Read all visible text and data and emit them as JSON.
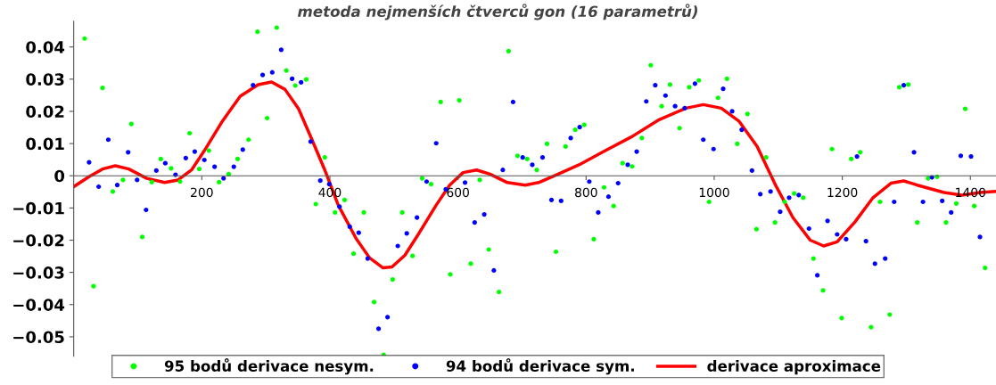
{
  "chart_data": {
    "type": "scatter",
    "title": "metoda nejmenších čtverců gon (16 parametrů)",
    "xlim": [
      0,
      1440
    ],
    "ylim": [
      -0.056,
      0.048
    ],
    "xticks": [
      200,
      400,
      600,
      800,
      1000,
      1200,
      1400
    ],
    "yticks": [
      {
        "value": -0.05,
        "label": "−0.05"
      },
      {
        "value": -0.04,
        "label": "−0.04"
      },
      {
        "value": -0.03,
        "label": "−0.03"
      },
      {
        "value": -0.02,
        "label": "−0.02"
      },
      {
        "value": -0.01,
        "label": "−0.01"
      },
      0,
      0.01,
      0.02,
      0.03,
      0.04
    ],
    "grid": false,
    "legend": "bottom",
    "marker": "circle",
    "series": [
      {
        "name": "95 bodů derivace nesym.",
        "color": "#00ff00",
        "x": [
          17,
          31,
          45,
          61,
          77,
          90,
          107,
          122,
          136,
          152,
          166,
          181,
          196,
          211,
          227,
          242,
          256,
          273,
          287,
          302,
          317,
          332,
          346,
          363,
          378,
          392,
          408,
          423,
          437,
          453,
          469,
          484,
          498,
          513,
          529,
          544,
          558,
          573,
          588,
          602,
          620,
          634,
          648,
          664,
          679,
          693,
          708,
          723,
          739,
          753,
          768,
          783,
          797,
          812,
          828,
          843,
          857,
          872,
          887,
          901,
          918,
          931,
          946,
          961,
          976,
          992,
          1006,
          1020,
          1036,
          1052,
          1066,
          1081,
          1095,
          1110,
          1125,
          1139,
          1155,
          1170,
          1184,
          1199,
          1214,
          1228,
          1245,
          1259,
          1274,
          1289,
          1303,
          1317,
          1334,
          1348,
          1362,
          1378,
          1392,
          1406,
          1423
        ],
        "values": [
          0.0426,
          -0.0343,
          0.0273,
          -0.0049,
          -0.0013,
          0.0161,
          -0.019,
          -0.002,
          0.0052,
          0.0023,
          -0.0018,
          0.0132,
          0.0021,
          0.0078,
          -0.002,
          0.0005,
          0.0052,
          0.0112,
          0.0447,
          0.0179,
          0.046,
          0.0327,
          0.028,
          0.0299,
          -0.0088,
          0.0057,
          -0.0114,
          -0.0075,
          -0.0242,
          -0.0114,
          -0.0392,
          -0.0556,
          -0.0322,
          -0.0114,
          -0.0249,
          -0.0008,
          -0.0026,
          0.0229,
          -0.0306,
          0.0234,
          -0.0273,
          -0.0013,
          -0.0229,
          -0.0361,
          0.0387,
          0.0062,
          0.0052,
          0.0018,
          0.0099,
          -0.0236,
          0.0091,
          0.0143,
          0.0158,
          -0.0197,
          -0.0036,
          -0.0094,
          0.0039,
          0.0029,
          0.0117,
          0.0343,
          0.0216,
          0.0283,
          0.0148,
          0.0275,
          0.0296,
          -0.0081,
          0.0242,
          0.0301,
          0.0099,
          0.0192,
          -0.0166,
          0.0057,
          -0.0145,
          -0.0081,
          -0.0055,
          -0.0068,
          -0.0257,
          -0.0356,
          0.0083,
          -0.0442,
          0.0052,
          0.0073,
          -0.047,
          -0.0081,
          -0.0431,
          0.0275,
          0.0283,
          -0.0145,
          -0.0008,
          -0.0003,
          -0.0145,
          -0.0086,
          0.0208,
          -0.0094,
          -0.0286
        ]
      },
      {
        "name": "94 bodů derivace sym.",
        "color": "#0000ff",
        "x": [
          24,
          39,
          54,
          68,
          85,
          99,
          113,
          129,
          143,
          159,
          175,
          189,
          204,
          220,
          234,
          250,
          264,
          280,
          295,
          310,
          324,
          341,
          355,
          370,
          385,
          399,
          415,
          431,
          445,
          459,
          476,
          490,
          506,
          520,
          536,
          551,
          566,
          581,
          611,
          626,
          641,
          656,
          670,
          686,
          701,
          716,
          732,
          746,
          761,
          776,
          790,
          805,
          819,
          835,
          850,
          865,
          879,
          894,
          908,
          924,
          939,
          954,
          970,
          983,
          999,
          1014,
          1028,
          1043,
          1059,
          1072,
          1088,
          1103,
          1117,
          1132,
          1148,
          1161,
          1177,
          1192,
          1206,
          1223,
          1237,
          1251,
          1267,
          1281,
          1296,
          1312,
          1326,
          1340,
          1356,
          1370,
          1385,
          1401,
          1415
        ],
        "values": [
          0.0042,
          -0.0034,
          0.0112,
          -0.0029,
          0.0073,
          -0.0013,
          -0.0106,
          0.0016,
          0.0039,
          0.0003,
          0.0055,
          0.0075,
          0.0049,
          0.0028,
          -0.0008,
          0.0028,
          0.0081,
          0.0281,
          0.0313,
          0.0321,
          0.0391,
          0.0301,
          0.029,
          0.0106,
          -0.0015,
          -0.0026,
          -0.0096,
          -0.0158,
          -0.0177,
          -0.0257,
          -0.0475,
          -0.0439,
          -0.0218,
          -0.0179,
          -0.013,
          -0.0018,
          0.0101,
          -0.0042,
          -0.0021,
          -0.0145,
          -0.012,
          -0.0294,
          0.0018,
          0.0229,
          0.0057,
          0.0034,
          0.0057,
          -0.0075,
          -0.0078,
          0.0117,
          0.0151,
          -0.0018,
          -0.0114,
          -0.0065,
          -0.0023,
          0.0034,
          0.0075,
          0.0231,
          0.0281,
          0.0249,
          0.0216,
          0.021,
          0.0286,
          0.0112,
          0.0083,
          0.027,
          0.02,
          0.0143,
          0.0016,
          -0.0057,
          -0.0049,
          -0.0112,
          -0.0068,
          -0.006,
          -0.0164,
          -0.0309,
          -0.014,
          -0.0182,
          -0.0197,
          0.006,
          -0.0203,
          -0.0273,
          -0.0257,
          -0.0081,
          0.0281,
          0.0073,
          -0.0081,
          -0.0005,
          -0.0078,
          -0.0114,
          0.0062,
          0.006,
          -0.019
        ]
      },
      {
        "name": "derivace aproximace",
        "type": "line",
        "color": "#ff0000",
        "marker": "none",
        "line_style": "solid",
        "x": [
          0,
          24,
          45,
          65,
          86,
          114,
          142,
          163,
          184,
          204,
          232,
          260,
          288,
          309,
          330,
          351,
          371,
          392,
          413,
          441,
          462,
          483,
          497,
          517,
          538,
          566,
          587,
          608,
          629,
          650,
          677,
          705,
          726,
          754,
          789,
          830,
          872,
          914,
          956,
          983,
          1011,
          1039,
          1067,
          1095,
          1123,
          1150,
          1171,
          1192,
          1220,
          1248,
          1276,
          1296,
          1317,
          1359,
          1387,
          1415,
          1438
        ],
        "values": [
          -0.0034,
          -0.0003,
          0.0021,
          0.0031,
          0.0021,
          -0.0008,
          -0.0021,
          -0.0013,
          0.0018,
          0.0078,
          0.0169,
          0.0247,
          0.0283,
          0.0291,
          0.0268,
          0.0208,
          0.0117,
          0.0018,
          -0.0091,
          -0.0195,
          -0.0255,
          -0.0286,
          -0.0283,
          -0.0247,
          -0.0182,
          -0.0091,
          -0.0029,
          0.001,
          0.0018,
          0.0005,
          -0.0021,
          -0.0029,
          -0.0021,
          0.0003,
          0.0034,
          0.0078,
          0.0122,
          0.0174,
          0.021,
          0.0221,
          0.021,
          0.0169,
          0.0091,
          -0.0026,
          -0.013,
          -0.02,
          -0.0218,
          -0.0205,
          -0.0143,
          -0.0068,
          -0.0023,
          -0.0016,
          -0.0029,
          -0.0052,
          -0.006,
          -0.0052,
          -0.0049
        ]
      }
    ]
  }
}
